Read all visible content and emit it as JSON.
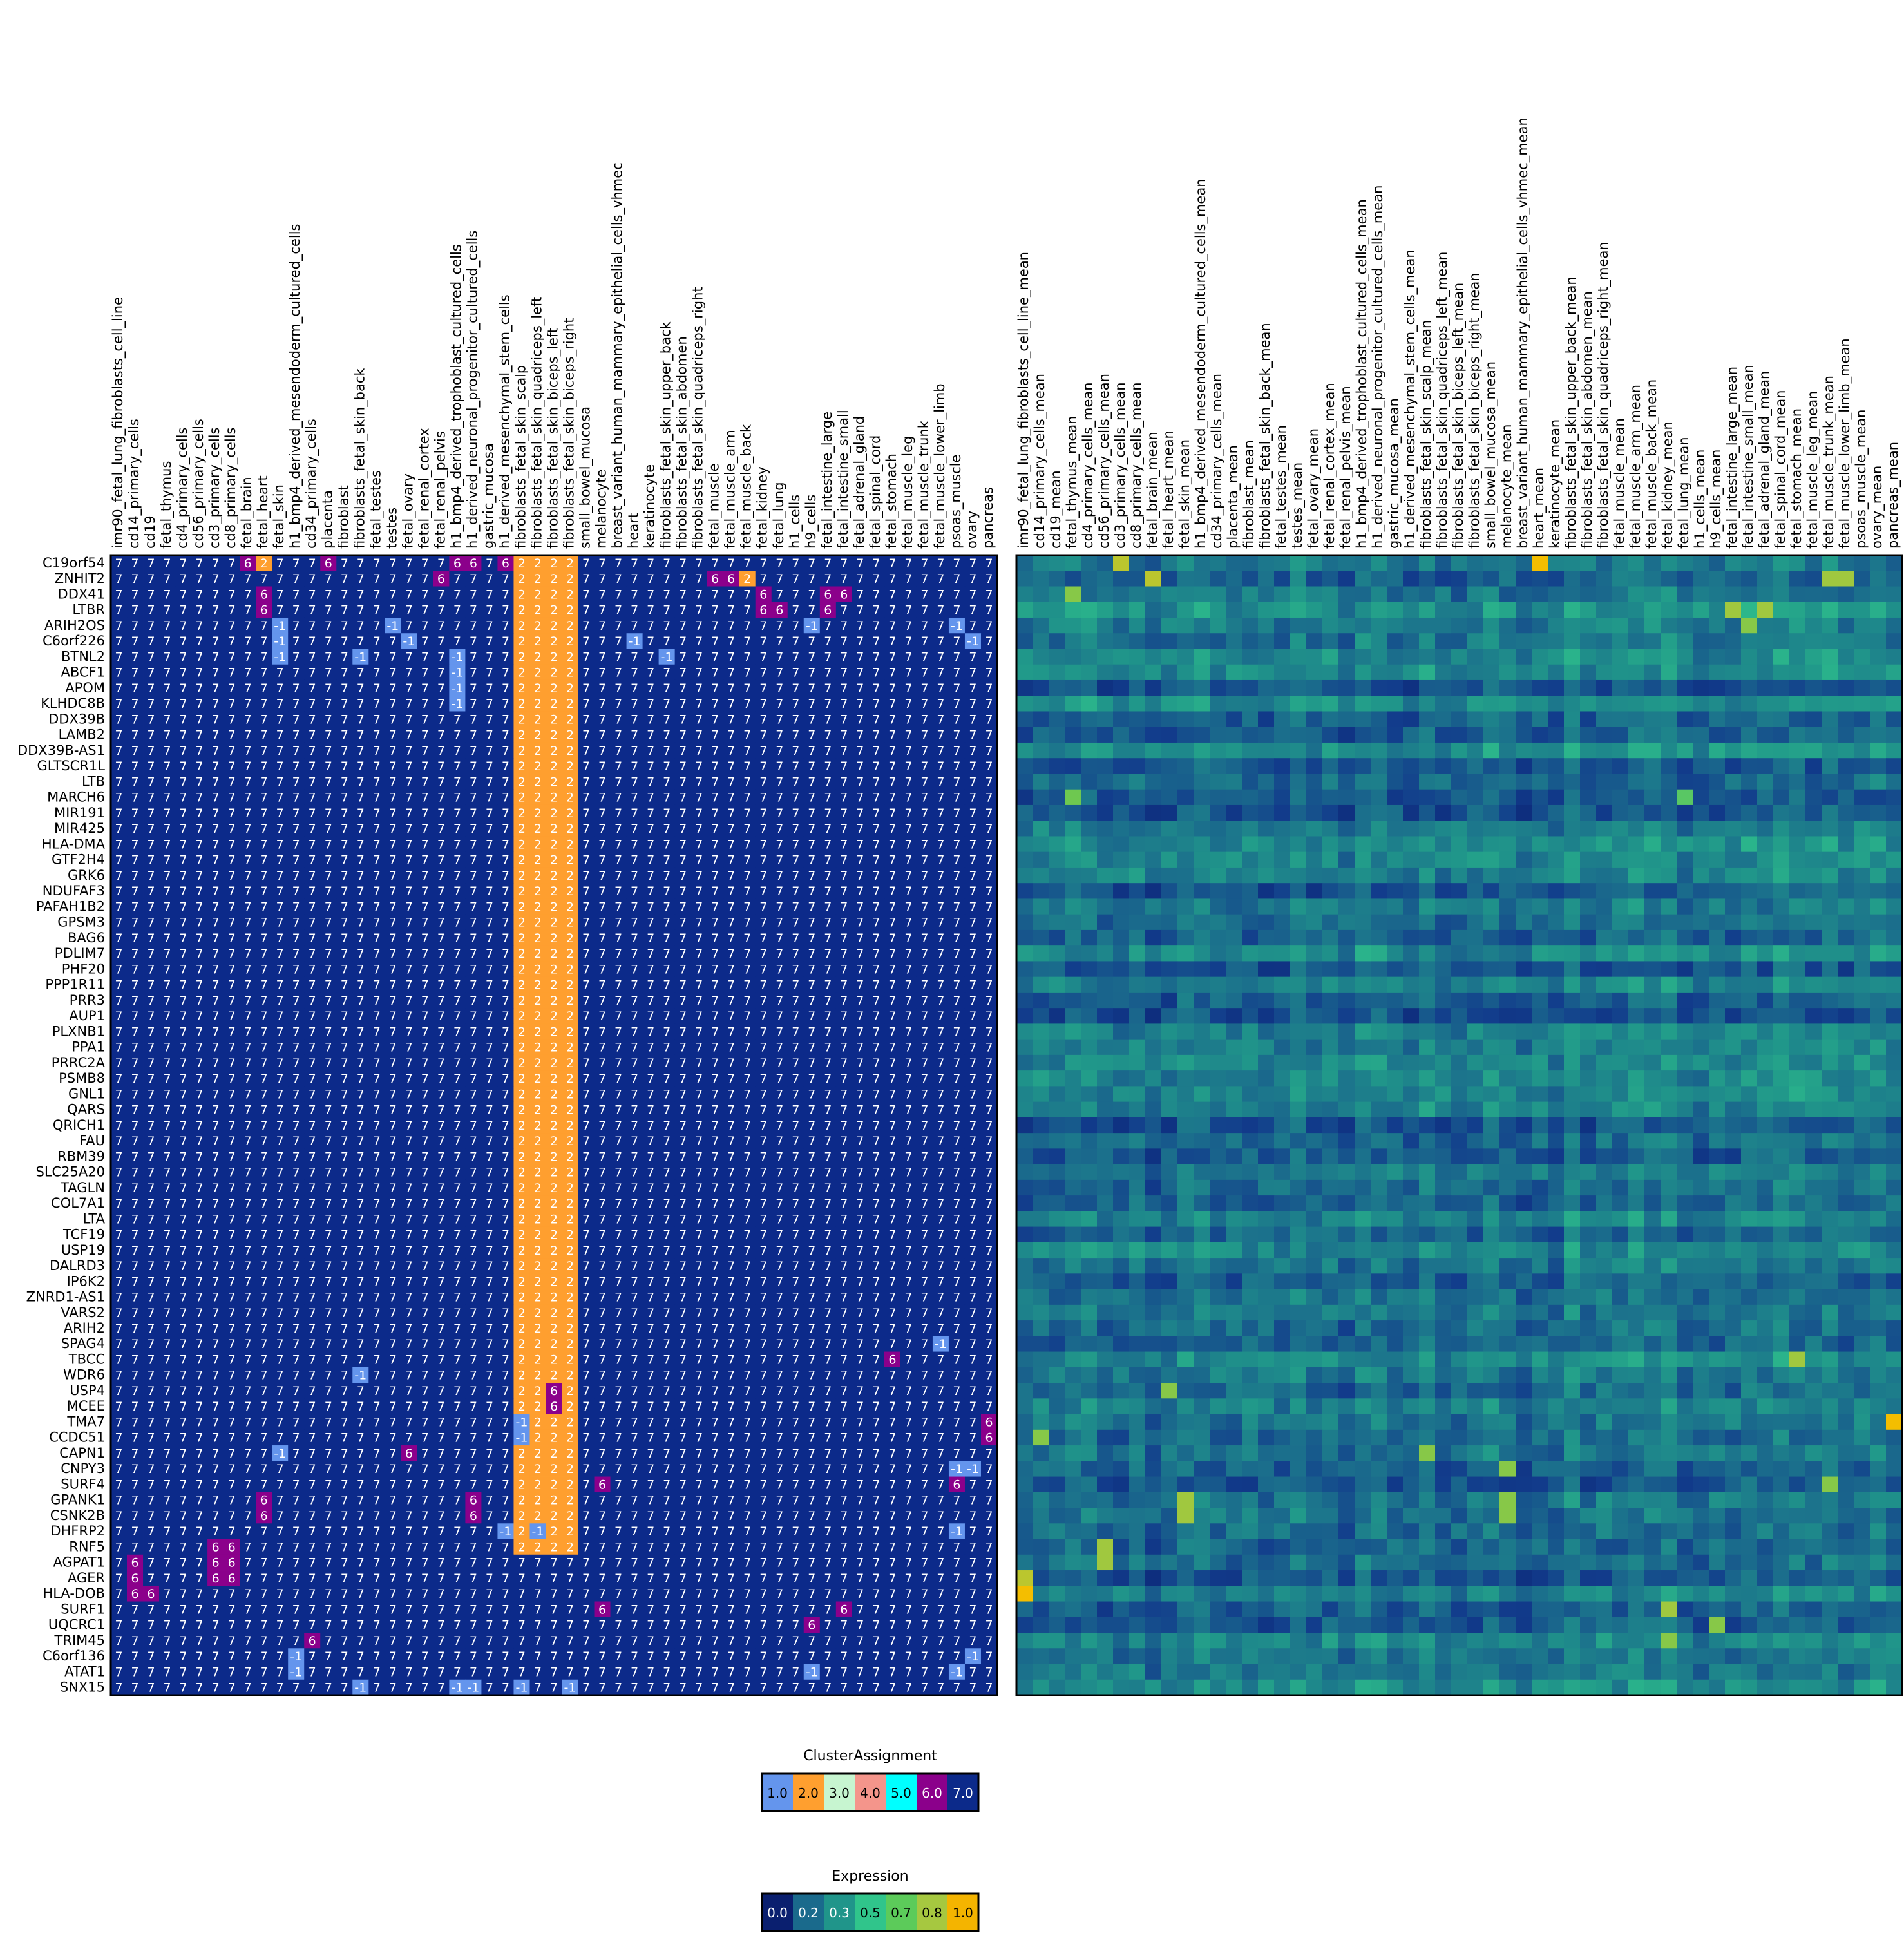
{
  "chart_data": {
    "type": "heatmap",
    "title": "",
    "genes": [
      "C19orf54",
      "ZNHIT2",
      "DDX41",
      "LTBR",
      "ARIH2OS",
      "C6orf226",
      "BTNL2",
      "ABCF1",
      "APOM",
      "KLHDC8B",
      "DDX39B",
      "LAMB2",
      "DDX39B-AS1",
      "GLTSCR1L",
      "LTB",
      "MARCH6",
      "MIR191",
      "MIR425",
      "HLA-DMA",
      "GTF2H4",
      "GRK6",
      "NDUFAF3",
      "PAFAH1B2",
      "GPSM3",
      "BAG6",
      "PDLIM7",
      "PHF20",
      "PPP1R11",
      "PRR3",
      "AUP1",
      "PLXNB1",
      "PPA1",
      "PRRC2A",
      "PSMB8",
      "GNL1",
      "QARS",
      "QRICH1",
      "FAU",
      "RBM39",
      "SLC25A20",
      "TAGLN",
      "COL7A1",
      "LTA",
      "TCF19",
      "USP19",
      "DALRD3",
      "IP6K2",
      "ZNRD1-AS1",
      "VARS2",
      "ARIH2",
      "SPAG4",
      "TBCC",
      "WDR6",
      "USP4",
      "MCEE",
      "TMA7",
      "CCDC51",
      "CAPN1",
      "CNPY3",
      "SURF4",
      "GPANK1",
      "CSNK2B",
      "DHFRP2",
      "RNF5",
      "AGPAT1",
      "AGER",
      "HLA-DOB",
      "SURF1",
      "UQCRC1",
      "TRIM45",
      "C6orf136",
      "ATAT1",
      "SNX15"
    ],
    "tissues": [
      "imr90_fetal_lung_fibroblasts_cell_line",
      "cd14_primary_cells",
      "cd19",
      "fetal_thymus",
      "cd4_primary_cells",
      "cd56_primary_cells",
      "cd3_primary_cells",
      "cd8_primary_cells",
      "fetal_brain",
      "fetal_heart",
      "fetal_skin",
      "h1_bmp4_derived_mesendoderm_cultured_cells",
      "cd34_primary_cells",
      "placenta",
      "fibroblast",
      "fibroblasts_fetal_skin_back",
      "fetal_testes",
      "testes",
      "fetal_ovary",
      "fetal_renal_cortex",
      "fetal_renal_pelvis",
      "h1_bmp4_derived_trophoblast_cultured_cells",
      "h1_derived_neuronal_progenitor_cultured_cells",
      "gastric_mucosa",
      "h1_derived_mesenchymal_stem_cells",
      "fibroblasts_fetal_skin_scalp",
      "fibroblasts_fetal_skin_quadriceps_left",
      "fibroblasts_fetal_skin_biceps_left",
      "fibroblasts_fetal_skin_biceps_right",
      "small_bowel_mucosa",
      "melanocyte",
      "breast_variant_human_mammary_epithelial_cells_vhmec",
      "heart",
      "keratinocyte",
      "fibroblasts_fetal_skin_upper_back",
      "fibroblasts_fetal_skin_abdomen",
      "fibroblasts_fetal_skin_quadriceps_right",
      "fetal_muscle",
      "fetal_muscle_arm",
      "fetal_muscle_back",
      "fetal_kidney",
      "fetal_lung",
      "h1_cells",
      "h9_cells",
      "fetal_intestine_large",
      "fetal_intestine_small",
      "fetal_adrenal_gland",
      "fetal_spinal_cord",
      "fetal_stomach",
      "fetal_muscle_leg",
      "fetal_muscle_trunk",
      "fetal_muscle_lower_limb",
      "psoas_muscle",
      "ovary",
      "pancreas"
    ],
    "expression_label_suffix": "_mean",
    "cluster_default": 7,
    "cluster_overrides": [
      [
        0,
        8,
        6
      ],
      [
        0,
        9,
        2
      ],
      [
        0,
        13,
        6
      ],
      [
        0,
        21,
        6
      ],
      [
        0,
        22,
        6
      ],
      [
        0,
        24,
        6
      ],
      [
        1,
        20,
        6
      ],
      [
        1,
        37,
        6
      ],
      [
        1,
        38,
        6
      ],
      [
        1,
        39,
        2
      ],
      [
        2,
        9,
        6
      ],
      [
        2,
        40,
        6
      ],
      [
        2,
        44,
        6
      ],
      [
        2,
        45,
        6
      ],
      [
        3,
        9,
        6
      ],
      [
        3,
        40,
        6
      ],
      [
        3,
        41,
        6
      ],
      [
        3,
        44,
        6
      ],
      [
        4,
        10,
        -1
      ],
      [
        4,
        17,
        -1
      ],
      [
        4,
        43,
        -1
      ],
      [
        4,
        52,
        -1
      ],
      [
        5,
        10,
        -1
      ],
      [
        5,
        18,
        -1
      ],
      [
        5,
        32,
        -1
      ],
      [
        5,
        53,
        -1
      ],
      [
        6,
        10,
        -1
      ],
      [
        6,
        15,
        -1
      ],
      [
        6,
        21,
        -1
      ],
      [
        6,
        34,
        -1
      ],
      [
        7,
        21,
        -1
      ],
      [
        8,
        21,
        -1
      ],
      [
        9,
        21,
        -1
      ],
      [
        49,
        52,
        7
      ],
      [
        50,
        51,
        -1
      ],
      [
        51,
        48,
        6
      ],
      [
        52,
        15,
        -1
      ],
      [
        53,
        27,
        6
      ],
      [
        54,
        27,
        6
      ],
      [
        55,
        25,
        -1
      ],
      [
        55,
        54,
        6
      ],
      [
        56,
        25,
        -1
      ],
      [
        56,
        54,
        6
      ],
      [
        57,
        10,
        -1
      ],
      [
        57,
        18,
        6
      ],
      [
        58,
        52,
        -1
      ],
      [
        58,
        53,
        -1
      ],
      [
        59,
        30,
        6
      ],
      [
        59,
        52,
        6
      ],
      [
        60,
        9,
        6
      ],
      [
        60,
        22,
        6
      ],
      [
        61,
        9,
        6
      ],
      [
        61,
        22,
        6
      ],
      [
        62,
        24,
        -1
      ],
      [
        62,
        26,
        -1
      ],
      [
        62,
        52,
        -1
      ],
      [
        63,
        6,
        6
      ],
      [
        63,
        7,
        6
      ],
      [
        64,
        1,
        6
      ],
      [
        64,
        6,
        6
      ],
      [
        64,
        7,
        6
      ],
      [
        65,
        1,
        6
      ],
      [
        65,
        6,
        6
      ],
      [
        65,
        7,
        6
      ],
      [
        66,
        1,
        6
      ],
      [
        66,
        2,
        6
      ],
      [
        67,
        30,
        6
      ],
      [
        67,
        45,
        6
      ],
      [
        68,
        43,
        6
      ],
      [
        69,
        12,
        6
      ],
      [
        70,
        11,
        -1
      ],
      [
        70,
        53,
        -1
      ],
      [
        71,
        11,
        -1
      ],
      [
        71,
        43,
        -1
      ],
      [
        71,
        52,
        -1
      ],
      [
        72,
        15,
        -1
      ],
      [
        72,
        21,
        -1
      ],
      [
        72,
        22,
        -1
      ],
      [
        72,
        25,
        -1
      ],
      [
        72,
        28,
        -1
      ]
    ],
    "cluster_2_block": {
      "rows": [
        0,
        63
      ],
      "cols": [
        25,
        28
      ]
    },
    "expression_seed": 7,
    "expression_hotspots": [
      [
        0,
        32,
        1.0
      ],
      [
        0,
        6,
        0.9
      ],
      [
        1,
        8,
        0.9
      ],
      [
        1,
        50,
        0.85
      ],
      [
        1,
        51,
        0.85
      ],
      [
        3,
        44,
        0.85
      ],
      [
        3,
        46,
        0.85
      ],
      [
        2,
        3,
        0.8
      ],
      [
        4,
        45,
        0.8
      ],
      [
        55,
        54,
        1.0
      ],
      [
        56,
        1,
        0.8
      ],
      [
        51,
        48,
        0.85
      ],
      [
        60,
        10,
        0.85
      ],
      [
        61,
        10,
        0.85
      ],
      [
        63,
        5,
        0.85
      ],
      [
        64,
        5,
        0.85
      ],
      [
        65,
        0,
        0.9
      ],
      [
        66,
        0,
        1.0
      ],
      [
        67,
        40,
        0.85
      ],
      [
        68,
        43,
        0.8
      ],
      [
        69,
        40,
        0.8
      ],
      [
        15,
        3,
        0.75
      ],
      [
        15,
        41,
        0.7
      ],
      [
        53,
        9,
        0.8
      ],
      [
        57,
        25,
        0.8
      ],
      [
        58,
        30,
        0.8
      ],
      [
        59,
        50,
        0.8
      ],
      [
        60,
        30,
        0.8
      ],
      [
        61,
        30,
        0.8
      ]
    ],
    "cluster_legend": {
      "title": "ClusterAssignment",
      "entries": [
        {
          "label": "1.0",
          "color": "#6495ED"
        },
        {
          "label": "2.0",
          "color": "#FF9F2F"
        },
        {
          "label": "3.0",
          "color": "#C7F5D0"
        },
        {
          "label": "4.0",
          "color": "#F4958B"
        },
        {
          "label": "5.0",
          "color": "#00FFFF"
        },
        {
          "label": "6.0",
          "color": "#8B008B"
        },
        {
          "label": "7.0",
          "color": "#0C2A8A"
        }
      ]
    },
    "expression_legend": {
      "title": "Expression",
      "entries": [
        {
          "label": "0.0",
          "color": "#0A1F6F"
        },
        {
          "label": "0.2",
          "color": "#1A6A8C"
        },
        {
          "label": "0.3",
          "color": "#20958A"
        },
        {
          "label": "0.5",
          "color": "#30C58B"
        },
        {
          "label": "0.7",
          "color": "#5CCB5A"
        },
        {
          "label": "0.8",
          "color": "#A6C840"
        },
        {
          "label": "1.0",
          "color": "#F4B400"
        }
      ]
    },
    "cluster_colors": {
      "-1": "#6495ED",
      "2": "#FF9F2F",
      "6": "#8B008B",
      "7": "#0C2A8A"
    },
    "cluster_cell_labels": {
      "-1": "-1",
      "2": "2",
      "6": "6",
      "7": "7"
    },
    "grid": false
  }
}
